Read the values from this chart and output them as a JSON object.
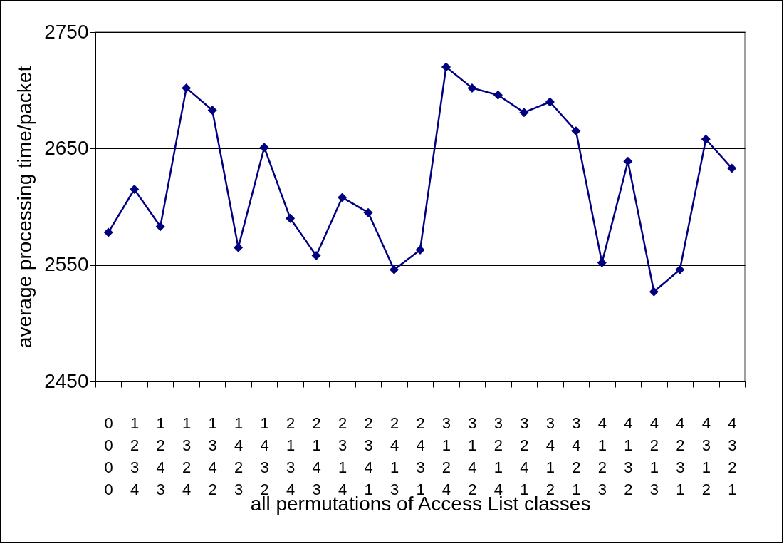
{
  "chart_data": {
    "type": "line",
    "xlabel": "all permutations of Access List classes",
    "ylabel": "average processing time/packet",
    "categories": [
      "0\n0\n0\n0",
      "1\n2\n3\n4",
      "1\n2\n4\n3",
      "1\n3\n2\n4",
      "1\n3\n4\n2",
      "1\n4\n2\n3",
      "1\n4\n3\n2",
      "2\n1\n3\n4",
      "2\n1\n4\n3",
      "2\n3\n1\n4",
      "2\n3\n4\n1",
      "2\n4\n1\n3",
      "2\n4\n3\n1",
      "3\n1\n2\n4",
      "3\n1\n4\n2",
      "3\n2\n1\n4",
      "3\n2\n4\n1",
      "3\n4\n1\n2",
      "3\n4\n2\n1",
      "4\n1\n2\n3",
      "4\n1\n3\n2",
      "4\n2\n1\n3",
      "4\n2\n3\n1",
      "4\n3\n1\n2",
      "4\n3\n2\n1"
    ],
    "series": [
      {
        "color": "#000080",
        "values": [
          2578,
          2615,
          2583,
          2702,
          2683,
          2565,
          2651,
          2590,
          2558,
          2608,
          2595,
          2546,
          2563,
          2720,
          2702,
          2696,
          2681,
          2690,
          2665,
          2552,
          2639,
          2527,
          2546,
          2658,
          2633
        ]
      }
    ],
    "ylim": [
      2450,
      2750
    ],
    "yticks": [
      2450,
      2550,
      2650,
      2750
    ],
    "grid": "y",
    "marker": "diamond",
    "line_style": "solid"
  }
}
